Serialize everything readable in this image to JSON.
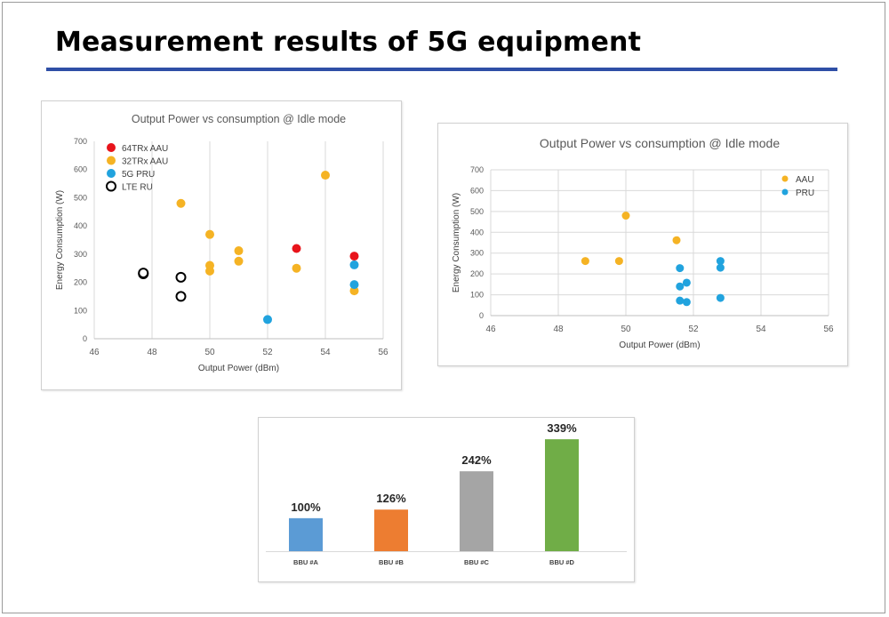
{
  "slide": {
    "title": "Measurement results of 5G equipment"
  },
  "chart_data": [
    {
      "type": "scatter",
      "title": "Output Power vs consumption @ Idle mode",
      "xlabel": "Output Power (dBm)",
      "ylabel": "Energy Consumption (W)",
      "xlim": [
        46,
        56
      ],
      "ylim": [
        0,
        700
      ],
      "xticks": [
        46,
        48,
        50,
        52,
        54,
        56
      ],
      "yticks": [
        0,
        100,
        200,
        300,
        400,
        500,
        600,
        700
      ],
      "grid": "vertical",
      "legend": "top-left",
      "series": [
        {
          "name": "64TRx AAU",
          "color": "#e8141b",
          "marker": "filled",
          "points": [
            [
              53,
              320
            ],
            [
              55,
              293
            ]
          ]
        },
        {
          "name": "32TRx AAU",
          "color": "#f5b324",
          "marker": "filled",
          "points": [
            [
              49,
              480
            ],
            [
              50,
              370
            ],
            [
              50,
              260
            ],
            [
              50,
              240
            ],
            [
              51,
              312
            ],
            [
              51,
              275
            ],
            [
              53,
              250
            ],
            [
              54,
              580
            ],
            [
              55,
              170
            ]
          ]
        },
        {
          "name": "5G    PRU",
          "color": "#21a3de",
          "marker": "filled",
          "points": [
            [
              52,
              68
            ],
            [
              55,
              262
            ],
            [
              55,
              192
            ]
          ]
        },
        {
          "name": "LTE    RU",
          "color": "#000000",
          "marker": "hollow",
          "points": [
            [
              47.7,
              230
            ],
            [
              47.7,
              233
            ],
            [
              49,
              218
            ],
            [
              49,
              150
            ]
          ]
        }
      ]
    },
    {
      "type": "scatter",
      "title": "Output Power vs consumption @ Idle mode",
      "xlabel": "Output Power (dBm)",
      "ylabel": "Energy Consumption (W)",
      "xlim": [
        46,
        56
      ],
      "ylim": [
        0,
        700
      ],
      "xticks": [
        46,
        48,
        50,
        52,
        54,
        56
      ],
      "yticks": [
        0,
        100,
        200,
        300,
        400,
        500,
        600,
        700
      ],
      "grid": "both",
      "legend": "top-right",
      "series": [
        {
          "name": "AAU",
          "color": "#f5b324",
          "marker": "filled",
          "points": [
            [
              48.8,
              262
            ],
            [
              49.8,
              262
            ],
            [
              50,
              480
            ],
            [
              51.5,
              362
            ]
          ]
        },
        {
          "name": "PRU",
          "color": "#21a3de",
          "marker": "filled",
          "points": [
            [
              51.6,
              228
            ],
            [
              51.6,
              140
            ],
            [
              51.6,
              72
            ],
            [
              51.8,
              158
            ],
            [
              51.8,
              65
            ],
            [
              52.8,
              262
            ],
            [
              52.8,
              230
            ],
            [
              52.8,
              85
            ]
          ]
        }
      ]
    },
    {
      "type": "bar",
      "categories": [
        "BBU #A",
        "BBU #B",
        "BBU #C",
        "BBU #D"
      ],
      "values": [
        100,
        126,
        242,
        339
      ],
      "value_labels": [
        "100%",
        "126%",
        "242%",
        "339%"
      ],
      "colors": [
        "#5b9bd5",
        "#ed7d31",
        "#a5a5a5",
        "#70ad47"
      ],
      "ylim": [
        0,
        350
      ],
      "grid": "none",
      "legend": "none"
    }
  ]
}
